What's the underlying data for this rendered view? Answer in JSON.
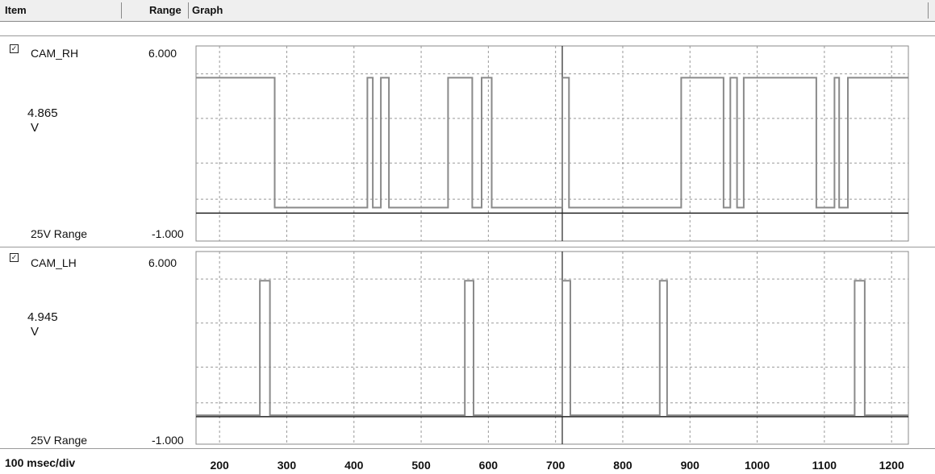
{
  "header": {
    "item": "Item",
    "range": "Range",
    "graph": "Graph"
  },
  "channels": [
    {
      "name": "CAM_RH",
      "checked": true,
      "max": "6.000",
      "min": "-1.000",
      "value": "4.865",
      "unit": "V",
      "range_label": "25V Range"
    },
    {
      "name": "CAM_LH",
      "checked": true,
      "max": "6.000",
      "min": "-1.000",
      "value": "4.945",
      "unit": "V",
      "range_label": "25V Range"
    }
  ],
  "footer": {
    "timebase": "100 msec/div"
  },
  "chart_data": {
    "type": "line",
    "x_ticks": [
      200,
      300,
      400,
      500,
      600,
      700,
      800,
      900,
      1000,
      1100,
      1200
    ],
    "xlim": [
      165,
      1225
    ],
    "ylim": [
      -1,
      6
    ],
    "cursor_x": 710,
    "series": [
      {
        "name": "CAM_RH",
        "high": 4.865,
        "low": 0.2,
        "x": [
          165,
          282,
          282,
          420,
          420,
          428,
          428,
          440,
          440,
          452,
          452,
          540,
          540,
          576,
          576,
          590,
          590,
          605,
          605,
          710,
          710,
          720,
          720,
          887,
          887,
          950,
          950,
          960,
          960,
          970,
          970,
          980,
          980,
          1088,
          1088,
          1115,
          1115,
          1122,
          1122,
          1135,
          1135,
          1225
        ],
        "y": [
          4.86,
          4.86,
          0.2,
          0.2,
          4.86,
          4.86,
          0.2,
          0.2,
          4.86,
          4.86,
          0.2,
          0.2,
          4.86,
          4.86,
          0.2,
          0.2,
          4.86,
          4.86,
          0.2,
          0.2,
          4.86,
          4.86,
          0.2,
          0.2,
          4.86,
          4.86,
          0.2,
          0.2,
          4.86,
          4.86,
          0.2,
          0.2,
          4.86,
          4.86,
          0.2,
          0.2,
          4.86,
          4.86,
          0.2,
          0.2,
          4.86,
          4.86
        ]
      },
      {
        "name": "CAM_LH",
        "high": 4.945,
        "low": 0.05,
        "x": [
          165,
          260,
          260,
          275,
          275,
          565,
          565,
          578,
          578,
          710,
          710,
          722,
          722,
          855,
          855,
          866,
          866,
          1145,
          1145,
          1160,
          1160,
          1225
        ],
        "y": [
          0.05,
          0.05,
          4.94,
          4.94,
          0.05,
          0.05,
          4.94,
          4.94,
          0.05,
          0.05,
          4.94,
          4.94,
          0.05,
          0.05,
          4.94,
          4.94,
          0.05,
          0.05,
          4.94,
          4.94,
          0.05,
          0.05
        ]
      }
    ]
  }
}
